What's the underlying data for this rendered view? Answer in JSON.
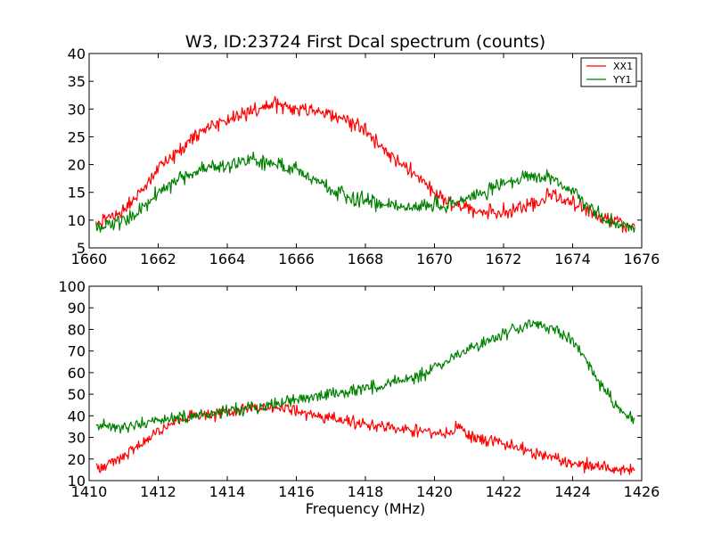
{
  "figure": {
    "title": "W3, ID:23724 First Dcal spectrum (counts)"
  },
  "colors": {
    "XX1": "#ff0000",
    "YY1": "#008000"
  },
  "chart_data": [
    {
      "type": "line",
      "title": "W3, ID:23724 First Dcal spectrum (counts)",
      "xlabel": "",
      "ylabel": "",
      "xlim": [
        1660,
        1676
      ],
      "ylim": [
        5,
        40
      ],
      "xticks": [
        1660,
        1662,
        1664,
        1666,
        1668,
        1670,
        1672,
        1674,
        1676
      ],
      "yticks": [
        5,
        10,
        15,
        20,
        25,
        30,
        35,
        40
      ],
      "grid": false,
      "legend": {
        "placement": "top-right",
        "entries": [
          "XX1",
          "YY1"
        ]
      },
      "noise": 1.3,
      "series": [
        {
          "name": "XX1",
          "color": "#ff0000",
          "x": [
            1660.2,
            1661.0,
            1661.5,
            1662.0,
            1662.5,
            1663.0,
            1663.5,
            1664.0,
            1664.5,
            1665.0,
            1665.5,
            1666.0,
            1666.5,
            1667.0,
            1667.5,
            1668.0,
            1668.5,
            1669.0,
            1669.5,
            1670.0,
            1670.5,
            1671.0,
            1671.5,
            1672.0,
            1672.5,
            1673.0,
            1673.3,
            1673.6,
            1674.0,
            1674.5,
            1675.0,
            1675.5,
            1675.8
          ],
          "values": [
            9,
            12,
            15,
            19,
            22,
            25,
            27,
            28,
            29,
            30,
            31,
            30,
            30,
            29,
            28,
            26,
            23,
            20,
            18,
            15,
            13,
            12,
            11.5,
            11.5,
            12,
            13,
            14.5,
            14,
            13,
            11.5,
            10,
            9,
            9
          ]
        },
        {
          "name": "YY1",
          "color": "#008000",
          "x": [
            1660.2,
            1661.0,
            1661.5,
            1662.0,
            1662.5,
            1663.0,
            1663.5,
            1664.0,
            1664.5,
            1665.0,
            1665.5,
            1666.0,
            1666.5,
            1667.0,
            1667.5,
            1668.0,
            1668.5,
            1669.0,
            1669.5,
            1670.0,
            1670.5,
            1671.0,
            1671.5,
            1672.0,
            1672.5,
            1673.0,
            1673.5,
            1674.0,
            1674.5,
            1675.0,
            1675.5,
            1675.8
          ],
          "values": [
            8.5,
            10,
            12,
            15,
            17,
            18.5,
            19.5,
            20,
            20.5,
            20.5,
            20,
            19,
            17.5,
            15.5,
            14,
            13.5,
            13,
            12.5,
            12.5,
            12.5,
            13,
            14,
            15,
            16.5,
            17.5,
            18,
            17.5,
            15,
            12,
            10,
            9,
            8.5
          ]
        }
      ]
    },
    {
      "type": "line",
      "title": "",
      "xlabel": "Frequency (MHz)",
      "ylabel": "",
      "xlim": [
        1410,
        1426
      ],
      "ylim": [
        10,
        100
      ],
      "xticks": [
        1410,
        1412,
        1414,
        1416,
        1418,
        1420,
        1422,
        1424,
        1426
      ],
      "yticks": [
        10,
        20,
        30,
        40,
        50,
        60,
        70,
        80,
        90,
        100
      ],
      "grid": false,
      "legend": null,
      "noise": 2.8,
      "series": [
        {
          "name": "XX1",
          "color": "#ff0000",
          "x": [
            1410.2,
            1411.0,
            1411.5,
            1412.0,
            1412.5,
            1413.0,
            1413.5,
            1414.0,
            1414.5,
            1415.0,
            1415.5,
            1416.0,
            1416.5,
            1417.0,
            1417.5,
            1418.0,
            1418.5,
            1419.0,
            1419.5,
            1420.0,
            1420.5,
            1420.7,
            1421.0,
            1421.5,
            1422.0,
            1422.5,
            1423.0,
            1423.5,
            1424.0,
            1424.5,
            1425.0,
            1425.5,
            1425.8
          ],
          "values": [
            16,
            21,
            27,
            33,
            37,
            40,
            41,
            42,
            43,
            44,
            43,
            42,
            40,
            39,
            37,
            36,
            35,
            34,
            33,
            32,
            32,
            36,
            31,
            29,
            27,
            25,
            22,
            20,
            18,
            17,
            16,
            15,
            15
          ]
        },
        {
          "name": "YY1",
          "color": "#008000",
          "x": [
            1410.2,
            1411.0,
            1411.5,
            1412.0,
            1412.5,
            1413.0,
            1413.5,
            1414.0,
            1414.5,
            1415.0,
            1415.5,
            1416.0,
            1416.5,
            1417.0,
            1417.5,
            1418.0,
            1418.5,
            1419.0,
            1419.5,
            1420.0,
            1420.5,
            1421.0,
            1421.5,
            1422.0,
            1422.5,
            1423.0,
            1423.5,
            1424.0,
            1424.5,
            1425.0,
            1425.5,
            1425.8
          ],
          "values": [
            35,
            35,
            36,
            38,
            39,
            40,
            41,
            42,
            43,
            44,
            46,
            47,
            48,
            50,
            51,
            53,
            54,
            56,
            58,
            62,
            66,
            71,
            74,
            78,
            81,
            82,
            80,
            75,
            62,
            50,
            41,
            38
          ]
        }
      ]
    }
  ]
}
